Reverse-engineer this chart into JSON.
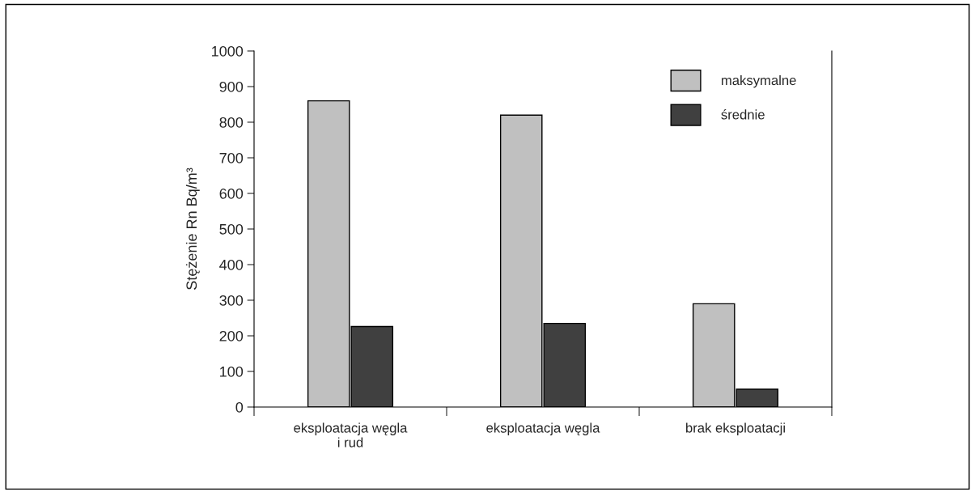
{
  "chart_data": {
    "type": "bar",
    "ylabel": "Stężenie Rn Bq/m³",
    "categories": [
      "eksploatacja węgla\ni rud",
      "eksploatacja węgla",
      "brak eksploatacji"
    ],
    "series": [
      {
        "name": "maksymalne",
        "color": "#c0c0c0",
        "values": [
          860,
          820,
          290
        ]
      },
      {
        "name": "średnie",
        "color": "#404040",
        "values": [
          226,
          235,
          50
        ]
      }
    ],
    "ylim": [
      0,
      1000
    ],
    "yticks": [
      0,
      100,
      200,
      300,
      400,
      500,
      600,
      700,
      800,
      900,
      1000
    ],
    "grid": false,
    "legend": "top right"
  }
}
